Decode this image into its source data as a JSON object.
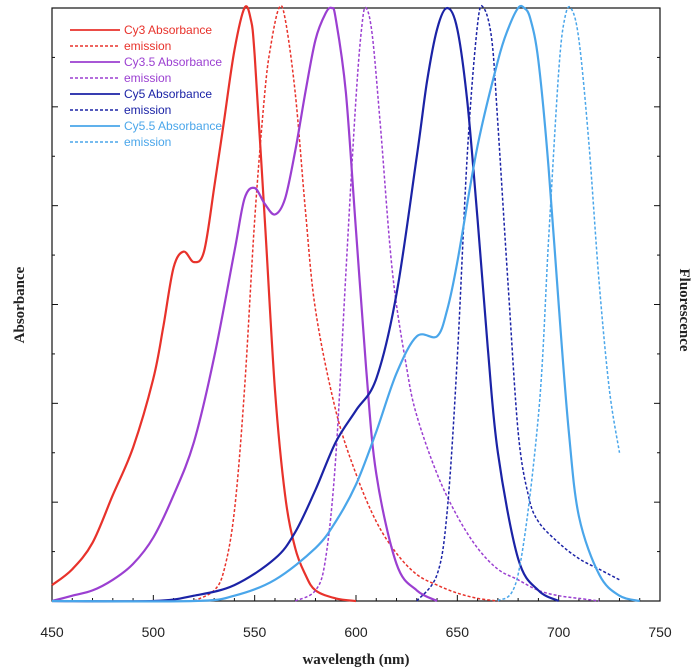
{
  "chart_data": {
    "type": "line",
    "title": "",
    "xlabel": "wavelength (nm)",
    "ylabel": "Absorbance",
    "y2label": "Fluorescence",
    "xlim": [
      450,
      750
    ],
    "ylim": [
      0,
      1.12
    ],
    "x_ticks": [
      450,
      500,
      550,
      600,
      650,
      700,
      750
    ],
    "grid": false,
    "legend_position": "top-left",
    "series": [
      {
        "name": "Cy3 Absorbance",
        "color": "#e8322b",
        "dash": "solid",
        "x": [
          450,
          460,
          470,
          480,
          490,
          500,
          505,
          510,
          515,
          520,
          525,
          530,
          535,
          540,
          545,
          548,
          550,
          555,
          560,
          565,
          570,
          575,
          580,
          590,
          600
        ],
        "y": [
          0.03,
          0.06,
          0.11,
          0.2,
          0.29,
          0.42,
          0.52,
          0.63,
          0.66,
          0.64,
          0.66,
          0.78,
          0.91,
          1.04,
          1.12,
          1.1,
          1.03,
          0.72,
          0.4,
          0.2,
          0.1,
          0.05,
          0.02,
          0.005,
          0.0
        ]
      },
      {
        "name": "emission",
        "color": "#e8322b",
        "dash": "dashed",
        "x": [
          520,
          530,
          535,
          540,
          545,
          550,
          555,
          558,
          562,
          565,
          570,
          575,
          580,
          590,
          600,
          610,
          620,
          630,
          640,
          650,
          660,
          670
        ],
        "y": [
          0.0,
          0.02,
          0.06,
          0.17,
          0.4,
          0.72,
          0.96,
          1.05,
          1.12,
          1.1,
          0.96,
          0.74,
          0.55,
          0.36,
          0.24,
          0.15,
          0.09,
          0.05,
          0.03,
          0.015,
          0.005,
          0.0
        ]
      },
      {
        "name": "Cy3.5 Absorbance",
        "color": "#9b3fd1",
        "dash": "solid",
        "x": [
          450,
          460,
          470,
          480,
          490,
          500,
          510,
          520,
          530,
          540,
          545,
          550,
          555,
          560,
          565,
          570,
          575,
          580,
          585,
          588,
          590,
          595,
          600,
          605,
          610,
          620,
          630,
          640
        ],
        "y": [
          0.0,
          0.01,
          0.02,
          0.04,
          0.07,
          0.12,
          0.2,
          0.3,
          0.46,
          0.66,
          0.76,
          0.78,
          0.75,
          0.73,
          0.76,
          0.85,
          0.96,
          1.06,
          1.11,
          1.12,
          1.1,
          0.96,
          0.7,
          0.44,
          0.24,
          0.07,
          0.02,
          0.0
        ]
      },
      {
        "name": "emission",
        "color": "#9b3fd1",
        "dash": "dashed",
        "x": [
          570,
          580,
          585,
          590,
          595,
          600,
          603,
          605,
          608,
          612,
          618,
          625,
          630,
          640,
          650,
          660,
          670,
          680,
          690,
          700,
          710,
          720
        ],
        "y": [
          0.0,
          0.02,
          0.08,
          0.27,
          0.62,
          0.95,
          1.09,
          1.12,
          1.07,
          0.9,
          0.62,
          0.44,
          0.35,
          0.24,
          0.16,
          0.1,
          0.06,
          0.04,
          0.02,
          0.01,
          0.005,
          0.0
        ]
      },
      {
        "name": "Cy5 Absorbance",
        "color": "#1b23a6",
        "dash": "solid",
        "x": [
          450,
          500,
          520,
          540,
          560,
          570,
          580,
          590,
          600,
          610,
          620,
          630,
          635,
          640,
          645,
          650,
          655,
          660,
          665,
          670,
          680,
          690,
          700
        ],
        "y": [
          0.0,
          0.0,
          0.01,
          0.03,
          0.08,
          0.13,
          0.21,
          0.3,
          0.36,
          0.42,
          0.58,
          0.84,
          0.98,
          1.08,
          1.12,
          1.08,
          0.94,
          0.72,
          0.48,
          0.28,
          0.08,
          0.02,
          0.0
        ]
      },
      {
        "name": "emission",
        "color": "#1b23a6",
        "dash": "dashed",
        "x": [
          630,
          640,
          645,
          650,
          655,
          660,
          663,
          667,
          670,
          675,
          680,
          685,
          690,
          700,
          710,
          720,
          730
        ],
        "y": [
          0.0,
          0.05,
          0.17,
          0.46,
          0.85,
          1.09,
          1.12,
          1.06,
          0.9,
          0.6,
          0.32,
          0.2,
          0.15,
          0.11,
          0.08,
          0.06,
          0.04
        ]
      },
      {
        "name": "Cy5.5 Absorbance",
        "color": "#4aa6ea",
        "dash": "solid",
        "x": [
          450,
          520,
          540,
          560,
          580,
          590,
          600,
          610,
          620,
          630,
          640,
          645,
          650,
          660,
          670,
          675,
          680,
          683,
          686,
          690,
          695,
          700,
          705,
          710,
          720,
          730,
          740
        ],
        "y": [
          0.0,
          0.0,
          0.01,
          0.04,
          0.1,
          0.15,
          0.22,
          0.32,
          0.43,
          0.5,
          0.5,
          0.55,
          0.64,
          0.86,
          1.02,
          1.08,
          1.12,
          1.12,
          1.1,
          1.02,
          0.82,
          0.56,
          0.32,
          0.16,
          0.05,
          0.01,
          0.0
        ]
      },
      {
        "name": "emission",
        "color": "#4aa6ea",
        "dash": "dashed",
        "x": [
          670,
          680,
          690,
          695,
          700,
          703,
          706,
          710,
          715,
          720,
          725,
          730
        ],
        "y": [
          0.0,
          0.05,
          0.35,
          0.68,
          1.0,
          1.1,
          1.12,
          1.06,
          0.86,
          0.6,
          0.4,
          0.28
        ]
      }
    ]
  }
}
